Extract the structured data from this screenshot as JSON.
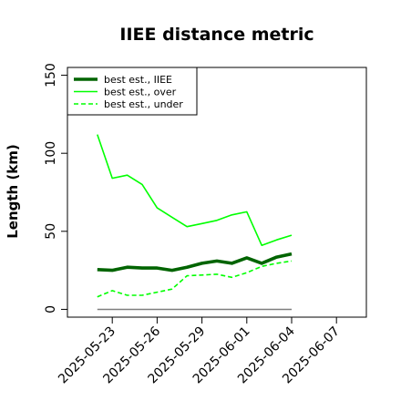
{
  "chart_data": {
    "type": "line",
    "title": "IIEE distance metric",
    "xlabel": "",
    "ylabel": "Length (km)",
    "ylim": [
      -5,
      155
    ],
    "xlim": [
      "2025-05-20",
      "2025-06-09"
    ],
    "yticks": [
      0,
      50,
      100,
      150
    ],
    "xticks": [
      "2025-05-23",
      "2025-05-26",
      "2025-05-29",
      "2025-06-01",
      "2025-06-04",
      "2025-06-07"
    ],
    "grid": false,
    "legend_position": "top-left",
    "x": [
      "2025-05-22",
      "2025-05-23",
      "2025-05-24",
      "2025-05-25",
      "2025-05-26",
      "2025-05-27",
      "2025-05-28",
      "2025-05-29",
      "2025-05-30",
      "2025-05-31",
      "2025-06-01",
      "2025-06-02",
      "2025-06-03",
      "2025-06-04"
    ],
    "series": [
      {
        "name": "best est., IIEE",
        "color": "#006400",
        "style": "solid",
        "width": "thick",
        "values": [
          25.5,
          25,
          27,
          26.5,
          26.5,
          25,
          27,
          29.5,
          31,
          29.5,
          33,
          29.5,
          33.5,
          35.5
        ]
      },
      {
        "name": "best est., over",
        "color": "#00ff00",
        "style": "solid",
        "width": "thin",
        "values": [
          112,
          84,
          86,
          80,
          65,
          59,
          53,
          55,
          57,
          60.5,
          62.5,
          41,
          44.5,
          47.5
        ]
      },
      {
        "name": "best est., under",
        "color": "#00ff00",
        "style": "dashed",
        "width": "thin",
        "values": [
          8,
          12,
          9,
          9,
          11,
          13,
          21.5,
          22,
          22.5,
          20.5,
          23.5,
          27.5,
          29.5,
          31
        ]
      }
    ],
    "reference_line": {
      "value": 0,
      "from": "2025-05-22",
      "to": "2025-06-04",
      "color": "#7f7f7f"
    }
  }
}
